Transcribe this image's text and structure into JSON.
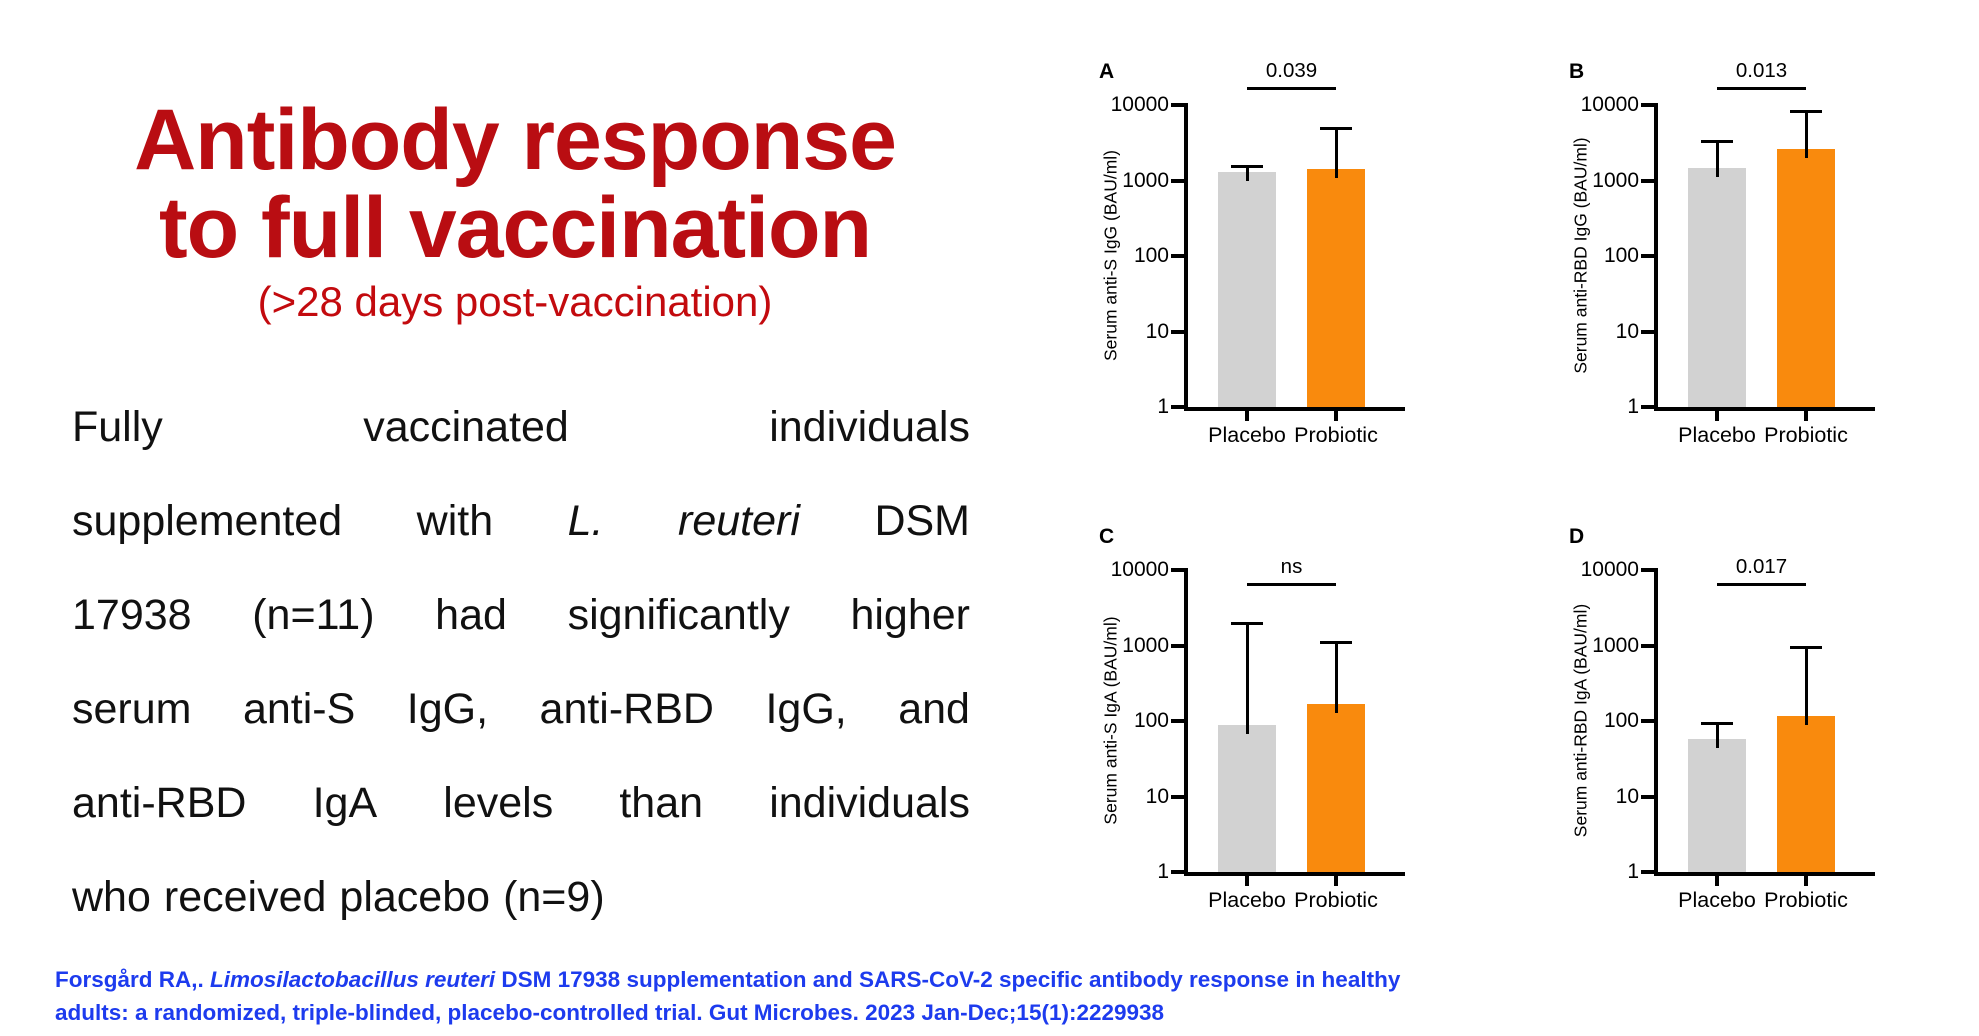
{
  "slide": {
    "title_line1": "Antibody response",
    "title_line2": "to full vaccination",
    "subtitle": "(>28 days post-vaccination)",
    "title_color": "#B90D12",
    "subtitle_color": "#C30A0E"
  },
  "paragraph": {
    "lines": [
      {
        "justify": true,
        "words": [
          {
            "t": "Fully"
          },
          {
            "t": "vaccinated"
          },
          {
            "t": "individuals"
          }
        ]
      },
      {
        "justify": true,
        "words": [
          {
            "t": "supplemented"
          },
          {
            "t": "with"
          },
          {
            "t": "L.",
            "i": true
          },
          {
            "t": "reuteri",
            "i": true
          },
          {
            "t": "DSM"
          }
        ]
      },
      {
        "justify": true,
        "words": [
          {
            "t": "17938"
          },
          {
            "t": "(n=11)"
          },
          {
            "t": "had"
          },
          {
            "t": "significantly"
          },
          {
            "t": "higher"
          }
        ]
      },
      {
        "justify": true,
        "words": [
          {
            "t": "serum"
          },
          {
            "t": "anti-S"
          },
          {
            "t": "IgG,"
          },
          {
            "t": "anti-RBD"
          },
          {
            "t": "IgG,"
          },
          {
            "t": "and"
          }
        ]
      },
      {
        "justify": true,
        "words": [
          {
            "t": "anti-RBD"
          },
          {
            "t": "IgA"
          },
          {
            "t": "levels"
          },
          {
            "t": "than"
          },
          {
            "t": "individuals"
          }
        ]
      },
      {
        "justify": false,
        "words": [
          {
            "t": "who"
          },
          {
            "t": "received"
          },
          {
            "t": "placebo"
          },
          {
            "t": "(n=9)"
          }
        ]
      }
    ]
  },
  "colors": {
    "placebo_bar": "#D2D2D2",
    "probiotic_bar": "#F98A0D",
    "axis": "#000000",
    "citation_blue": "#1D3BEE"
  },
  "chart_data": [
    {
      "id": "A",
      "type": "bar",
      "log_scale": true,
      "title": "",
      "ylabel": "Serum anti-S IgG (BAU/ml)",
      "xlabel": "",
      "ylim": [
        1,
        10000
      ],
      "yticks": [
        1,
        10,
        100,
        1000,
        10000
      ],
      "categories": [
        "Placebo",
        "Probiotic"
      ],
      "values": [
        1300,
        1400
      ],
      "error_top": [
        1550,
        5000
      ],
      "p_label": "0.039"
    },
    {
      "id": "B",
      "type": "bar",
      "log_scale": true,
      "title": "",
      "ylabel": "Serum anti-RBD IgG (BAU/ml)",
      "xlabel": "",
      "ylim": [
        1,
        10000
      ],
      "yticks": [
        1,
        10,
        100,
        1000,
        10000
      ],
      "categories": [
        "Placebo",
        "Probiotic"
      ],
      "values": [
        1450,
        2600
      ],
      "error_top": [
        3300,
        8400
      ],
      "p_label": "0.013"
    },
    {
      "id": "C",
      "type": "bar",
      "log_scale": true,
      "title": "",
      "ylabel": "Serum anti-S IgA (BAU/ml)",
      "xlabel": "",
      "ylim": [
        1,
        10000
      ],
      "yticks": [
        1,
        10,
        100,
        1000,
        10000
      ],
      "categories": [
        "Placebo",
        "Probiotic"
      ],
      "values": [
        88,
        170
      ],
      "error_top": [
        2000,
        1100
      ],
      "p_label": "ns"
    },
    {
      "id": "D",
      "type": "bar",
      "log_scale": true,
      "title": "",
      "ylabel": "Serum anti-RBD IgA (BAU/ml)",
      "xlabel": "",
      "ylim": [
        1,
        10000
      ],
      "yticks": [
        1,
        10,
        100,
        1000,
        10000
      ],
      "categories": [
        "Placebo",
        "Probiotic"
      ],
      "values": [
        58,
        115
      ],
      "error_top": [
        95,
        950
      ],
      "p_label": "0.017"
    }
  ],
  "citation": {
    "lines": [
      [
        {
          "t": "Forsgård RA,. ",
          "i": false
        },
        {
          "t": "Limosilactobacillus reuteri",
          "i": true
        },
        {
          "t": " DSM 17938 supplementation and SARS-CoV-2 specific antibody response in healthy",
          "i": false
        }
      ],
      [
        {
          "t": "adults: a randomized, triple-blinded, placebo-controlled trial. Gut Microbes. 2023 Jan-Dec;15(1):2229938",
          "i": false
        }
      ]
    ]
  }
}
